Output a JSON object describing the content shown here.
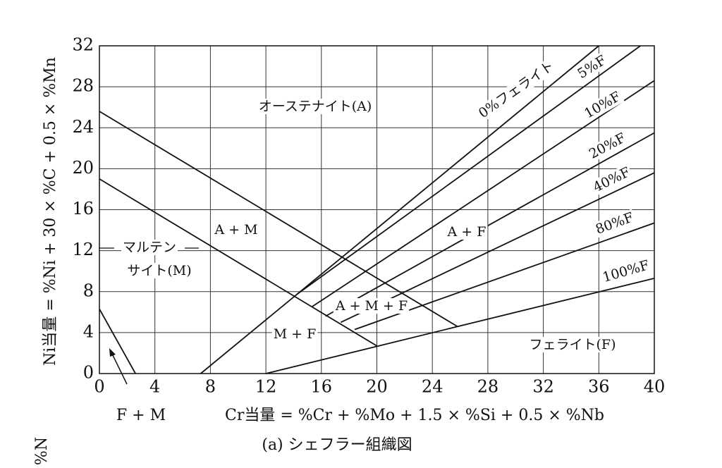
{
  "chart_data": {
    "type": "line",
    "xlabel": "Cr当量 = %Cr + %Mo + 1.5 × %Si + 0.5 × %Nb",
    "ylabel": "Ni当量 = %Ni + 30 × %C + 0.5 × %Mn",
    "caption": "(a) シェフラー組織図",
    "cut_text": "%N",
    "xlim": [
      0,
      40
    ],
    "ylim": [
      0,
      32
    ],
    "xticks": [
      0,
      4,
      8,
      12,
      16,
      20,
      24,
      28,
      32,
      36,
      40
    ],
    "yticks": [
      0,
      4,
      8,
      12,
      16,
      20,
      24,
      28,
      32
    ],
    "grid": true,
    "color": "#111111",
    "lines": [
      {
        "x": [
          0,
          25.8
        ],
        "y": [
          25.6,
          4.6
        ]
      },
      {
        "x": [
          0,
          20
        ],
        "y": [
          19,
          2.7
        ]
      },
      {
        "x": [
          0,
          2.6
        ],
        "y": [
          6.3,
          0
        ]
      },
      {
        "x": [
          12,
          40
        ],
        "y": [
          0,
          9.3
        ]
      },
      {
        "x": [
          7.3,
          36
        ],
        "y": [
          0,
          32
        ]
      },
      {
        "x": [
          14.2,
          39
        ],
        "y": [
          7.7,
          32
        ]
      },
      {
        "x": [
          15.3,
          40
        ],
        "y": [
          6.5,
          28.6
        ]
      },
      {
        "x": [
          16.3,
          40
        ],
        "y": [
          5.6,
          23.5
        ]
      },
      {
        "x": [
          17.4,
          40
        ],
        "y": [
          5,
          19.6
        ]
      },
      {
        "x": [
          18.4,
          40
        ],
        "y": [
          4.3,
          14.7
        ]
      }
    ],
    "annotations": [
      "オーステナイト(A)",
      "0%フェライト",
      "5%F",
      "10%F",
      "20%F",
      "40%F",
      "80%F",
      "100%F",
      "A + M",
      "マルテン",
      "サイト(M)",
      "A + F",
      "A + M + F",
      "M + F",
      "フェライト(F)",
      "F + M"
    ]
  }
}
